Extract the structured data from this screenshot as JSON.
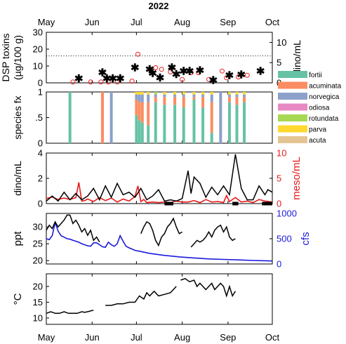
{
  "title": "2022",
  "colors": {
    "black": "#000000",
    "red": "#e8191b",
    "blue": "#1a1adc",
    "grid": "#555555"
  },
  "month_ticks": [
    "May",
    "Jun",
    "Jul",
    "Aug",
    "Sep",
    "Oct"
  ],
  "chart_data": [
    {
      "id": "dsp",
      "type": "scatter",
      "ylabel_lines": [
        "DSP toxins",
        "(µg/100 g)"
      ],
      "y2label": "dino/mL",
      "ylim": [
        0,
        30
      ],
      "yticks": [
        "0",
        "10",
        "20",
        "30"
      ],
      "y2lim": [
        0,
        12.5
      ],
      "y2ticks": [
        "0",
        "5",
        "10"
      ],
      "reference_line": 16,
      "series": [
        {
          "marker": "open-circle",
          "color": "#e8191b",
          "x": [
            18,
            30,
            37,
            42,
            48,
            58,
            62,
            74,
            78,
            84,
            92,
            98,
            103,
            110,
            119,
            122,
            130,
            136
          ],
          "y": [
            0.5,
            0.5,
            0.5,
            0.5,
            0.5,
            1,
            17,
            9,
            8,
            6.5,
            2,
            6,
            6,
            2,
            7,
            3,
            3.5,
            4.5
          ]
        },
        {
          "marker": "asterisk",
          "color": "#000000",
          "x": [
            22,
            38,
            41,
            45,
            50,
            60,
            70,
            72,
            77,
            85,
            88,
            93,
            97,
            104,
            113,
            124,
            132,
            145
          ],
          "y": [
            1.2,
            2.7,
            1.2,
            1.2,
            1.2,
            3.9,
            3.5,
            2.5,
            1.4,
            3.9,
            2.3,
            3,
            3,
            3.2,
            0.8,
            2,
            2.2,
            3
          ]
        }
      ]
    },
    {
      "id": "species",
      "type": "bar",
      "stacked": true,
      "ylabel": "species fx",
      "ylim": [
        0,
        1
      ],
      "yticks": [
        "0",
        ".5",
        "1"
      ],
      "legend": [
        {
          "name": "fortii",
          "color": "#66c2a5"
        },
        {
          "name": "acuminata",
          "color": "#fc8d62"
        },
        {
          "name": "norvegica",
          "color": "#8da0cb"
        },
        {
          "name": "odiosa",
          "color": "#e78ac3"
        },
        {
          "name": "rotundata",
          "color": "#a6d854"
        },
        {
          "name": "parva",
          "color": "#ffd92f"
        },
        {
          "name": "acuta",
          "color": "#e5c494"
        }
      ],
      "x": [
        16,
        38,
        44,
        61,
        63,
        65,
        69,
        74,
        80,
        87,
        93,
        100,
        106,
        112,
        118,
        124,
        129,
        134
      ],
      "fractions": [
        [
          1,
          0,
          0,
          0,
          0,
          0,
          0
        ],
        [
          0,
          1,
          0,
          0,
          0,
          0,
          0
        ],
        [
          0,
          0,
          1,
          0,
          0,
          0,
          0
        ],
        [
          0.55,
          0.3,
          0.1,
          0,
          0,
          0.05,
          0
        ],
        [
          0.45,
          0.35,
          0.15,
          0,
          0,
          0.05,
          0
        ],
        [
          0.4,
          0.4,
          0.15,
          0,
          0,
          0.05,
          0
        ],
        [
          0.35,
          0.45,
          0.15,
          0,
          0,
          0.05,
          0
        ],
        [
          0.8,
          0.1,
          0.05,
          0,
          0.05,
          0,
          0
        ],
        [
          0.75,
          0.15,
          0.05,
          0,
          0,
          0.05,
          0
        ],
        [
          0.75,
          0.15,
          0.05,
          0,
          0,
          0.05,
          0
        ],
        [
          0.7,
          0.2,
          0.05,
          0,
          0,
          0.05,
          0
        ],
        [
          0.85,
          0.05,
          0.05,
          0,
          0,
          0.05,
          0
        ],
        [
          0.7,
          0.2,
          0.05,
          0,
          0,
          0.05,
          0
        ],
        [
          0.2,
          0.6,
          0.15,
          0,
          0,
          0.05,
          0
        ],
        [
          0,
          0,
          1,
          0,
          0,
          0,
          0
        ],
        [
          0.8,
          0.1,
          0.05,
          0,
          0,
          0.05,
          0
        ],
        [
          0.75,
          0.15,
          0.05,
          0,
          0,
          0.05,
          0
        ],
        [
          0.8,
          0.1,
          0.05,
          0,
          0,
          0.05,
          0
        ]
      ]
    },
    {
      "id": "dino",
      "type": "line",
      "ylabel": "dino/mL",
      "y2label": "meso/mL",
      "ylim": [
        0,
        4
      ],
      "yticks": [
        "0",
        "2",
        "4"
      ],
      "y2lim": [
        0,
        10
      ],
      "y2ticks": [
        "0",
        "5",
        "10"
      ],
      "series": [
        {
          "axis": "left",
          "color": "#000000",
          "x": [
            0,
            4,
            8,
            12,
            16,
            20,
            24,
            28,
            32,
            36,
            40,
            44,
            48,
            52,
            56,
            60,
            64,
            68,
            72,
            76,
            80,
            84,
            88,
            92,
            96,
            98,
            100,
            104,
            108,
            112,
            116,
            120,
            124,
            128,
            132,
            136,
            140,
            144,
            148,
            150,
            153
          ],
          "y": [
            0.2,
            0.6,
            0.2,
            0.9,
            0.3,
            0.8,
            0.3,
            0.6,
            1.2,
            0.3,
            1.4,
            0.5,
            1.6,
            0.7,
            0.9,
            0.5,
            1.2,
            0.3,
            0.6,
            1.1,
            0.2,
            0.3,
            0.2,
            0.4,
            2.6,
            0.8,
            2.1,
            1.6,
            0.5,
            1.3,
            0.7,
            1.4,
            0.7,
            3.9,
            1.2,
            0.3,
            0.3,
            1.4,
            0.7,
            1.1,
            0.9
          ]
        },
        {
          "axis": "right",
          "color": "#e8191b",
          "x": [
            0,
            4,
            8,
            12,
            16,
            20,
            22,
            24,
            26,
            28,
            32,
            36,
            40,
            44,
            48,
            52,
            56,
            60,
            62,
            64,
            66,
            68,
            72,
            76,
            80,
            84,
            88,
            92,
            96,
            100,
            104,
            108,
            112,
            116,
            120,
            122,
            124,
            128,
            132,
            136,
            140,
            144,
            148,
            153
          ],
          "y": [
            1,
            1.3,
            0.8,
            1.1,
            0.8,
            1.2,
            4.2,
            0.5,
            0.6,
            0.9,
            0.4,
            1.2,
            0.6,
            1.1,
            0.3,
            0.9,
            0.5,
            1.4,
            3.5,
            0.4,
            0.8,
            0.2,
            0.3,
            0.2,
            0.3,
            0.2,
            0.5,
            0.3,
            0.3,
            0.6,
            0.2,
            0.8,
            0.3,
            0.4,
            0.2,
            1.6,
            0.4,
            1.2,
            0.3,
            0.5,
            0.2,
            0.8,
            0.5,
            0.3
          ]
        }
      ],
      "zero_segments": [
        [
          80,
          86
        ],
        [
          126,
          130
        ],
        [
          146,
          153
        ]
      ]
    },
    {
      "id": "salinity",
      "type": "line",
      "ylabel": "ppt",
      "y2label": "cfs",
      "ylim": [
        19,
        34
      ],
      "yticks": [
        "20",
        "25",
        "30"
      ],
      "y2lim": [
        0,
        1000
      ],
      "y2ticks": [
        "0",
        "500",
        "1000"
      ],
      "series": [
        {
          "axis": "left",
          "color": "#000000",
          "segments": [
            {
              "x": [
                0,
                2,
                4,
                6,
                8,
                10,
                12,
                14,
                16,
                18,
                20,
                22,
                24,
                26,
                28,
                30,
                32,
                34,
                36
              ],
              "y": [
                29,
                30.5,
                29.5,
                31.5,
                30,
                31,
                32,
                33.5,
                33.5,
                31,
                32,
                30.5,
                28.5,
                29.5,
                27.5,
                29,
                26,
                27,
                25.5
              ]
            },
            {
              "x": [
                64,
                66,
                68,
                70,
                72,
                74,
                76,
                78,
                80,
                82,
                84,
                86,
                88,
                90,
                92
              ],
              "y": [
                28,
                30,
                31.5,
                31,
                29,
                26,
                24.5,
                27,
                28,
                30,
                31,
                32.5,
                30,
                28,
                28.5
              ]
            },
            {
              "x": [
                98,
                100,
                102,
                104,
                106,
                108,
                110,
                112,
                114,
                116,
                118,
                120,
                122,
                124,
                126,
                128
              ],
              "y": [
                24,
                25,
                26,
                25.5,
                26,
                27,
                28.5,
                27,
                29,
                30,
                30.5,
                28.5,
                30,
                27,
                26,
                26.5
              ]
            }
          ]
        },
        {
          "axis": "right",
          "color": "#1a1adc",
          "x": [
            0,
            2,
            4,
            6,
            8,
            10,
            12,
            14,
            16,
            18,
            20,
            22,
            24,
            26,
            28,
            30,
            32,
            34,
            36,
            38,
            40,
            42,
            44,
            46,
            48,
            50,
            52,
            54,
            56,
            60,
            65,
            70,
            80,
            90,
            100,
            110,
            120,
            130,
            140,
            153
          ],
          "y": [
            500,
            480,
            560,
            820,
            650,
            560,
            530,
            500,
            490,
            470,
            450,
            430,
            400,
            380,
            360,
            350,
            420,
            420,
            380,
            340,
            330,
            430,
            380,
            350,
            400,
            560,
            450,
            350,
            320,
            270,
            240,
            210,
            170,
            140,
            120,
            100,
            90,
            80,
            70,
            60
          ]
        }
      ]
    },
    {
      "id": "temperature",
      "type": "line",
      "ylabel": "°C",
      "ylim": [
        8,
        24
      ],
      "yticks": [
        "10",
        "15",
        "20"
      ],
      "series": [
        {
          "axis": "left",
          "color": "#000000",
          "segments": [
            {
              "x": [
                0,
                3,
                6,
                9,
                12,
                15,
                18,
                21,
                24,
                26,
                28,
                32
              ],
              "y": [
                11.5,
                12,
                11.5,
                11.5,
                12,
                11.5,
                11.5,
                11.5,
                12,
                11.8,
                12,
                12.5
              ]
            },
            {
              "x": [
                40,
                44,
                48,
                52,
                56,
                60,
                63,
                66,
                68,
                70,
                73,
                76,
                80,
                84,
                88
              ],
              "y": [
                14,
                14,
                14.5,
                14.5,
                15,
                15,
                17,
                16,
                18,
                17,
                18.5,
                17,
                17.5,
                18,
                20
              ]
            },
            {
              "x": [
                91,
                94,
                97,
                100,
                102,
                104,
                106,
                108,
                110,
                112,
                114,
                116,
                118,
                120,
                122,
                124,
                126,
                128
              ],
              "y": [
                22,
                22.5,
                21.5,
                22,
                20,
                21,
                20,
                19,
                20,
                21,
                19,
                20,
                21,
                20,
                17,
                20,
                17,
                18.5
              ]
            }
          ]
        }
      ]
    }
  ]
}
